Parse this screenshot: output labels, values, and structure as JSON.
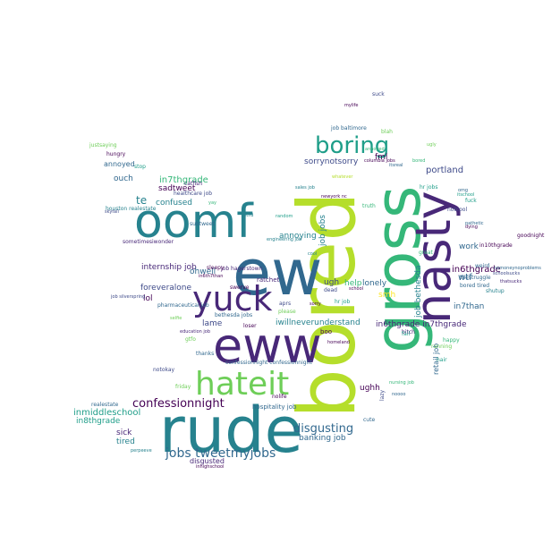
{
  "colors": {
    "background": "#ffffff",
    "palette": [
      "#440154",
      "#482878",
      "#3e4a89",
      "#31688e",
      "#26828e",
      "#1f9e89",
      "#35b779",
      "#6ece58",
      "#b5de2b",
      "#fde725"
    ]
  },
  "words": [
    {
      "text": "bored"
    },
    {
      "text": "gross"
    },
    {
      "text": "rude"
    },
    {
      "text": "ew"
    },
    {
      "text": "eww"
    },
    {
      "text": "nasty"
    },
    {
      "text": "oomf"
    },
    {
      "text": "yuck"
    },
    {
      "text": "hateit"
    },
    {
      "text": "boring"
    },
    {
      "text": "confessionnight"
    },
    {
      "text": "jobs tweetmyjobs"
    },
    {
      "text": "disgusting"
    },
    {
      "text": "in6thgrade"
    },
    {
      "text": "in7thgrade"
    },
    {
      "text": "in6thgrade in7thgrade"
    },
    {
      "text": "inmiddleschool"
    },
    {
      "text": "in8thgrade"
    },
    {
      "text": "internship job"
    },
    {
      "text": "sorrynotsorry"
    },
    {
      "text": "portland"
    },
    {
      "text": "annoying"
    },
    {
      "text": "fml"
    },
    {
      "text": "te"
    },
    {
      "text": "confused"
    },
    {
      "text": "foreveralone"
    },
    {
      "text": "lol"
    },
    {
      "text": "lame"
    },
    {
      "text": "ohwell"
    },
    {
      "text": "sadtweet"
    },
    {
      "text": "ouch"
    },
    {
      "text": "annoyed"
    },
    {
      "text": "lonely"
    },
    {
      "text": "help"
    },
    {
      "text": "ugh"
    },
    {
      "text": "wtf"
    },
    {
      "text": "work"
    },
    {
      "text": "in7than"
    },
    {
      "text": "iwillneverunderstand"
    },
    {
      "text": "job bethesda"
    },
    {
      "text": "retail job"
    },
    {
      "text": "job jobs"
    },
    {
      "text": "banking job"
    },
    {
      "text": "disgusted"
    },
    {
      "text": "sick"
    },
    {
      "text": "tired"
    },
    {
      "text": "ughh"
    },
    {
      "text": "hospitality job"
    },
    {
      "text": "confessionnight confessionnight"
    },
    {
      "text": "catfish"
    },
    {
      "text": "healthcare job"
    },
    {
      "text": "houston realestate"
    },
    {
      "text": "sometimesiwonder"
    },
    {
      "text": "pharmaceutical job"
    },
    {
      "text": "job hagerstown"
    },
    {
      "text": "ratchet"
    },
    {
      "text": "subtweet"
    },
    {
      "text": "hungry"
    },
    {
      "text": "justsaying"
    },
    {
      "text": "stop"
    },
    {
      "text": "bored tired"
    },
    {
      "text": "thestruggle"
    },
    {
      "text": "weird"
    },
    {
      "text": "goodnight"
    },
    {
      "text": "shutup"
    },
    {
      "text": "thatsucks"
    },
    {
      "text": "in10thgrade"
    },
    {
      "text": "notcool"
    },
    {
      "text": "fuck"
    },
    {
      "text": "suck"
    },
    {
      "text": "job baltimore"
    },
    {
      "text": "blah"
    },
    {
      "text": "mylife"
    },
    {
      "text": "newyork nc"
    },
    {
      "text": "truth"
    },
    {
      "text": "happy"
    },
    {
      "text": "hair"
    },
    {
      "text": "running"
    },
    {
      "text": "bitch"
    },
    {
      "text": "fail"
    },
    {
      "text": "great"
    },
    {
      "text": "hr job"
    },
    {
      "text": "smh"
    },
    {
      "text": "school"
    },
    {
      "text": "dead"
    },
    {
      "text": "boo"
    },
    {
      "text": "cute"
    },
    {
      "text": "lazy"
    },
    {
      "text": "nursing job"
    },
    {
      "text": "noooo"
    },
    {
      "text": "notokay"
    },
    {
      "text": "friday"
    },
    {
      "text": "gtfo"
    },
    {
      "text": "thanks"
    },
    {
      "text": "education job"
    },
    {
      "text": "bethesda jobs"
    },
    {
      "text": "aprs"
    },
    {
      "text": "please"
    },
    {
      "text": "sorry"
    },
    {
      "text": "loser"
    },
    {
      "text": "nolife"
    },
    {
      "text": "realestate"
    },
    {
      "text": "perpeeve"
    },
    {
      "text": "inhighschool"
    },
    {
      "text": "stfu"
    },
    {
      "text": "swerve"
    },
    {
      "text": "sleepy"
    },
    {
      "text": "in6th7than"
    },
    {
      "text": "engineering job"
    },
    {
      "text": "random"
    },
    {
      "text": "columbia jobs"
    },
    {
      "text": "hr jobs"
    },
    {
      "text": "sales job"
    },
    {
      "text": "cool"
    },
    {
      "text": "whatever"
    },
    {
      "text": "annoyed"
    },
    {
      "text": "itsreal"
    },
    {
      "text": "omg"
    },
    {
      "text": "ugly"
    },
    {
      "text": "dying"
    },
    {
      "text": "pathetic"
    },
    {
      "text": "itschool"
    },
    {
      "text": "bored"
    },
    {
      "text": "schoolsucks"
    },
    {
      "text": "yay"
    },
    {
      "text": "selfie"
    },
    {
      "text": "job silverspring"
    },
    {
      "text": "skyfall"
    },
    {
      "text": "homeland"
    },
    {
      "text": "nomoneynoproblems"
    }
  ]
}
